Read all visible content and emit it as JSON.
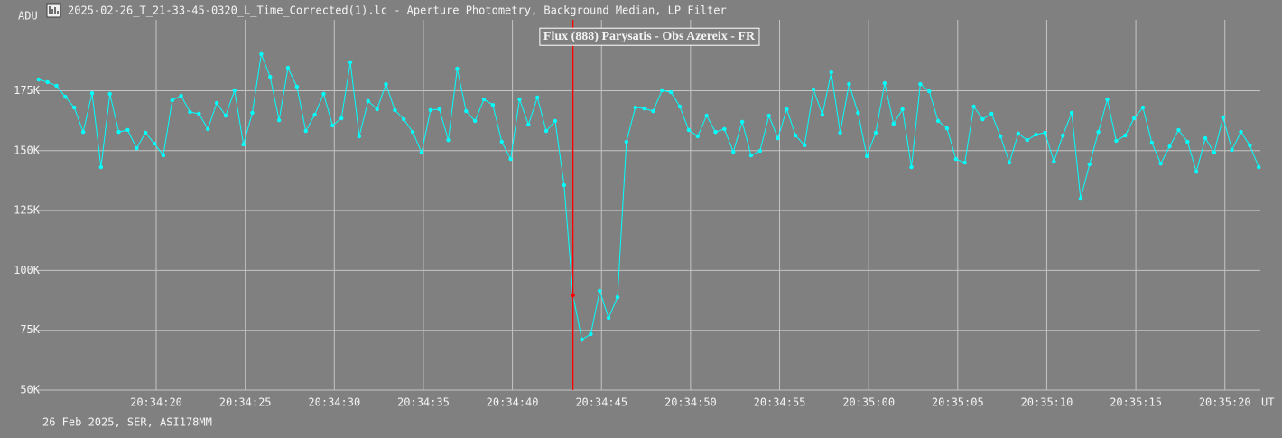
{
  "chart_data": {
    "type": "line",
    "title": "2025-02-26_T_21-33-45-0320_L_Time_Corrected(1).lc - Aperture Photometry, Background Median, LP Filter",
    "y_label": "ADU",
    "x_label": "UT",
    "footer": "26 Feb 2025, SER, ASI178MM",
    "grid": true,
    "legend": "top",
    "cursor": {
      "x": 43.4,
      "color": "#ff0000"
    },
    "xlim": [
      13.36,
      81.99
    ],
    "ylim": [
      50000,
      204600
    ],
    "xticks": [
      {
        "value": 20,
        "label": "20:34:20"
      },
      {
        "value": 25,
        "label": "20:34:25"
      },
      {
        "value": 30,
        "label": "20:34:30"
      },
      {
        "value": 35,
        "label": "20:34:35"
      },
      {
        "value": 40,
        "label": "20:34:40"
      },
      {
        "value": 45,
        "label": "20:34:45"
      },
      {
        "value": 50,
        "label": "20:34:50"
      },
      {
        "value": 55,
        "label": "20:34:55"
      },
      {
        "value": 60,
        "label": "20:35:00"
      },
      {
        "value": 65,
        "label": "20:35:05"
      },
      {
        "value": 70,
        "label": "20:35:10"
      },
      {
        "value": 75,
        "label": "20:35:15"
      },
      {
        "value": 80,
        "label": "20:35:20"
      }
    ],
    "yticks": [
      {
        "value": 50000,
        "label": "50K"
      },
      {
        "value": 75000,
        "label": "75K"
      },
      {
        "value": 100000,
        "label": "100K"
      },
      {
        "value": 125000,
        "label": "125K"
      },
      {
        "value": 150000,
        "label": "150K"
      },
      {
        "value": 175000,
        "label": "175K"
      }
    ],
    "x": [
      13.4,
      13.9,
      14.4,
      14.9,
      15.4,
      15.9,
      16.4,
      16.9,
      17.4,
      17.9,
      18.4,
      18.9,
      19.4,
      19.9,
      20.4,
      20.9,
      21.4,
      21.9,
      22.4,
      22.9,
      23.4,
      23.9,
      24.4,
      24.9,
      25.4,
      25.9,
      26.4,
      26.9,
      27.4,
      27.9,
      28.4,
      28.9,
      29.4,
      29.9,
      30.4,
      30.9,
      31.4,
      31.9,
      32.4,
      32.9,
      33.4,
      33.9,
      34.4,
      34.9,
      35.4,
      35.9,
      36.4,
      36.9,
      37.4,
      37.9,
      38.4,
      38.9,
      39.4,
      39.9,
      40.4,
      40.9,
      41.4,
      41.9,
      42.4,
      42.9,
      43.4,
      43.9,
      44.4,
      44.9,
      45.4,
      45.9,
      46.4,
      46.9,
      47.4,
      47.9,
      48.4,
      48.9,
      49.4,
      49.9,
      50.4,
      50.9,
      51.4,
      51.9,
      52.4,
      52.9,
      53.4,
      53.9,
      54.4,
      54.9,
      55.4,
      55.9,
      56.4,
      56.9,
      57.4,
      57.9,
      58.4,
      58.9,
      59.4,
      59.9,
      60.4,
      60.9,
      61.4,
      61.9,
      62.4,
      62.9,
      63.4,
      63.9,
      64.4,
      64.9,
      65.4,
      65.9,
      66.4,
      66.9,
      67.4,
      67.9,
      68.4,
      68.9,
      69.4,
      69.9,
      70.4,
      70.9,
      71.4,
      71.9,
      72.4,
      72.9,
      73.4,
      73.9,
      74.4,
      74.9,
      75.4,
      75.9,
      76.4,
      76.9,
      77.4,
      77.9,
      78.4,
      78.9,
      79.4,
      79.9,
      80.4,
      80.9,
      81.4,
      81.9
    ],
    "series": [
      {
        "name": "Flux (888) Parysatis  - Obs Azereix  - FR",
        "color": "#00ffff",
        "values": [
          179700,
          178600,
          177100,
          172500,
          168000,
          157800,
          174000,
          143100,
          173700,
          157800,
          158600,
          151000,
          157500,
          152900,
          148000,
          171000,
          172900,
          166100,
          165400,
          159000,
          169900,
          164600,
          175200,
          152600,
          165800,
          190300,
          180800,
          162700,
          184600,
          176700,
          158200,
          165000,
          173700,
          160500,
          163500,
          186900,
          156000,
          170700,
          167300,
          177800,
          166900,
          163100,
          157800,
          149200,
          166900,
          167300,
          154400,
          184200,
          166500,
          162400,
          171400,
          169100,
          153700,
          146500,
          171400,
          160900,
          172200,
          158200,
          162400,
          135600,
          89600,
          71100,
          73400,
          91500,
          80200,
          88800,
          153700,
          168000,
          167600,
          166500,
          175200,
          174400,
          168400,
          158600,
          156000,
          164600,
          157800,
          159000,
          149500,
          162000,
          148000,
          149900,
          164600,
          155200,
          167300,
          156300,
          152200,
          175600,
          165000,
          182700,
          157500,
          177800,
          165800,
          147700,
          157500,
          178200,
          161200,
          167300,
          143100,
          177800,
          174800,
          162400,
          159300,
          146500,
          145000,
          168400,
          163100,
          165400,
          156000,
          145000,
          157100,
          154400,
          156700,
          157500,
          145400,
          156300,
          165800,
          129900,
          144300,
          157800,
          171400,
          154100,
          156300,
          163500,
          168000,
          153300,
          144600,
          151800,
          158600,
          153700,
          141200,
          155200,
          149200,
          163900,
          150300,
          157800,
          152200,
          143100
        ]
      }
    ]
  }
}
